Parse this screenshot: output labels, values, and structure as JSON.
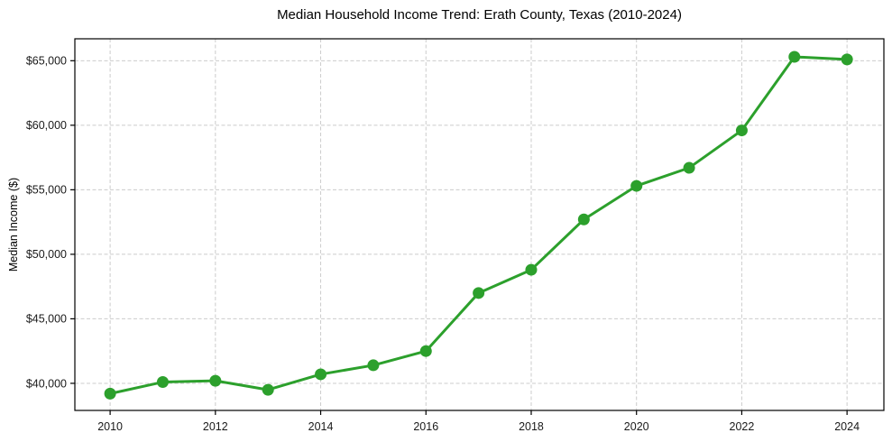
{
  "chart_data": {
    "type": "line",
    "title": "Median Household Income Trend: Erath County, Texas (2010-2024)",
    "xlabel": "",
    "ylabel": "Median Income ($)",
    "x": [
      2010,
      2011,
      2012,
      2013,
      2014,
      2015,
      2016,
      2017,
      2018,
      2019,
      2020,
      2021,
      2022,
      2023,
      2024
    ],
    "series": [
      {
        "name": "Median household income",
        "color": "#2ca02c",
        "values": [
          39200,
          40100,
          40200,
          39500,
          40700,
          41400,
          42500,
          47000,
          48800,
          52700,
          55300,
          56700,
          59600,
          65300,
          65100
        ]
      }
    ],
    "x_ticks": [
      {
        "value": 2010,
        "label": "2010"
      },
      {
        "value": 2012,
        "label": "2012"
      },
      {
        "value": 2014,
        "label": "2014"
      },
      {
        "value": 2016,
        "label": "2016"
      },
      {
        "value": 2018,
        "label": "2018"
      },
      {
        "value": 2020,
        "label": "2020"
      },
      {
        "value": 2022,
        "label": "2022"
      },
      {
        "value": 2024,
        "label": "2024"
      }
    ],
    "y_ticks": [
      {
        "value": 40000,
        "label": "$40,000"
      },
      {
        "value": 45000,
        "label": "$45,000"
      },
      {
        "value": 50000,
        "label": "$50,000"
      },
      {
        "value": 55000,
        "label": "$55,000"
      },
      {
        "value": 60000,
        "label": "$60,000"
      },
      {
        "value": 65000,
        "label": "$65,000"
      }
    ],
    "xlim": [
      2009.33,
      2024.7
    ],
    "ylim": [
      37900,
      66700
    ],
    "grid": "dashed-both-axes",
    "legend_position": "none",
    "marker": "circle"
  },
  "styles": {
    "line_color": "#2ca02c",
    "grid_color": "#cccccc",
    "axis_color": "#000000",
    "text_color": "#1a1a1a",
    "background_color": "#ffffff"
  }
}
